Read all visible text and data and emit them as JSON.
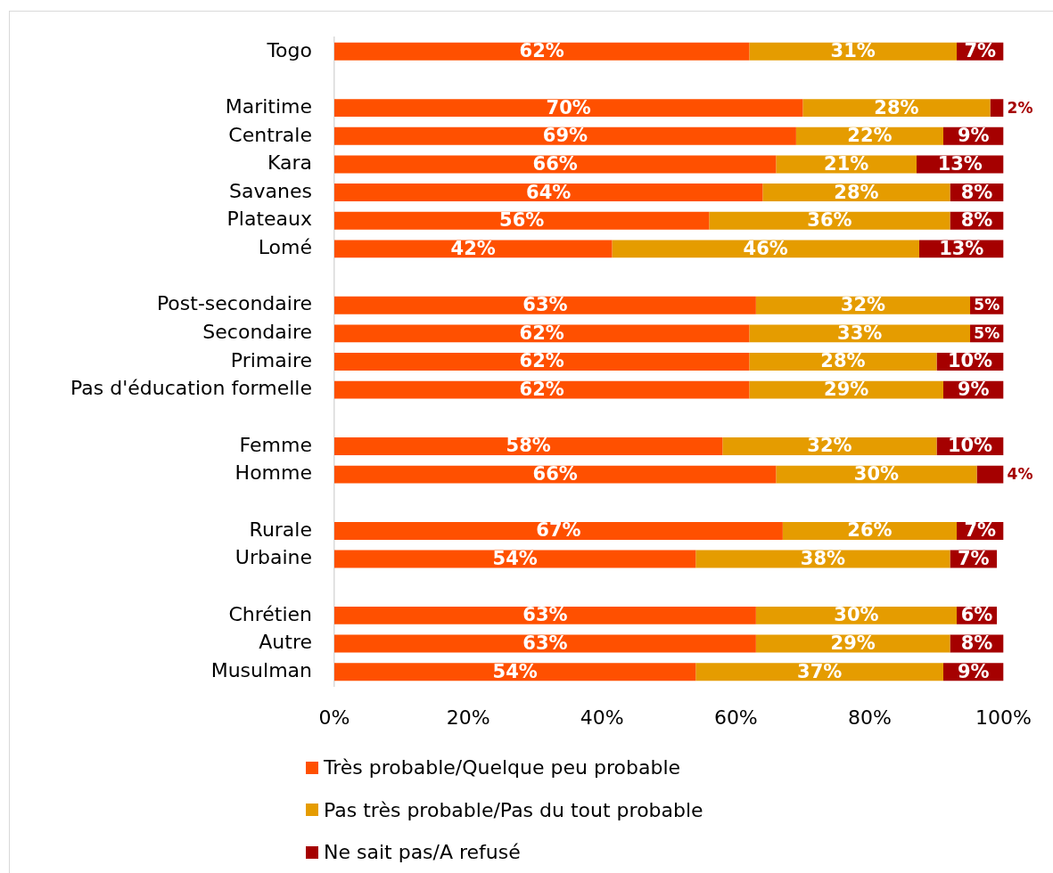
{
  "chart_data": {
    "type": "bar",
    "orientation": "horizontal",
    "stacked": true,
    "categories": [
      "Togo",
      null,
      "Maritime",
      "Centrale",
      "Kara",
      "Savanes",
      "Plateaux",
      "Lomé",
      null,
      "Post-secondaire",
      "Secondaire",
      "Primaire",
      "Pas d'éducation formelle",
      null,
      "Femme",
      "Homme",
      null,
      "Rurale",
      "Urbaine",
      null,
      "Chrétien",
      "Autre",
      "Musulman"
    ],
    "series": [
      {
        "name": "Très probable/Quelque peu probable",
        "color": "#ff5000",
        "values": [
          62,
          null,
          70,
          69,
          66,
          64,
          56,
          41.5,
          null,
          63,
          62,
          62,
          62,
          null,
          58,
          66,
          null,
          67,
          54,
          null,
          63,
          63,
          54
        ],
        "value_labels": [
          "62%",
          null,
          "70%",
          "69%",
          "66%",
          "64%",
          "56%",
          "42%",
          null,
          "63%",
          "62%",
          "62%",
          "62%",
          null,
          "58%",
          "66%",
          null,
          "67%",
          "54%",
          null,
          "63%",
          "63%",
          "54%"
        ]
      },
      {
        "name": "Pas très probable/Pas du tout probable",
        "color": "#e59c00",
        "values": [
          31,
          null,
          28,
          22,
          21,
          28,
          36,
          45.9,
          null,
          32,
          33,
          28,
          29,
          null,
          32,
          30,
          null,
          26,
          38,
          null,
          30,
          29,
          37
        ],
        "value_labels": [
          "31%",
          null,
          "28%",
          "22%",
          "21%",
          "28%",
          "36%",
          "46%",
          null,
          "32%",
          "33%",
          "28%",
          "29%",
          null,
          "32%",
          "30%",
          null,
          "26%",
          "38%",
          null,
          "30%",
          "29%",
          "37%"
        ]
      },
      {
        "name": "Ne sait pas/A refusé",
        "color": "#a50000",
        "values": [
          7,
          null,
          2,
          9,
          13,
          8,
          8,
          12.6,
          null,
          5,
          5,
          10,
          9,
          null,
          10,
          4,
          null,
          7,
          7,
          null,
          6,
          8,
          9
        ],
        "value_labels": [
          "7%",
          null,
          "2%",
          "9%",
          "13%",
          "8%",
          "8%",
          "13%",
          null,
          "5%",
          "5%",
          "10%",
          "9%",
          null,
          "10%",
          "4%",
          null,
          "7%",
          "7%",
          null,
          "6%",
          "8%",
          "9%"
        ]
      }
    ],
    "xlim": [
      0,
      100
    ],
    "xticks": [
      {
        "value": 0,
        "label": "0%"
      },
      {
        "value": 20,
        "label": "20%"
      },
      {
        "value": 40,
        "label": "40%"
      },
      {
        "value": 60,
        "label": "60%"
      },
      {
        "value": 80,
        "label": "80%"
      },
      {
        "value": 100,
        "label": "100%"
      }
    ],
    "grid": false,
    "legend": "bottom"
  }
}
